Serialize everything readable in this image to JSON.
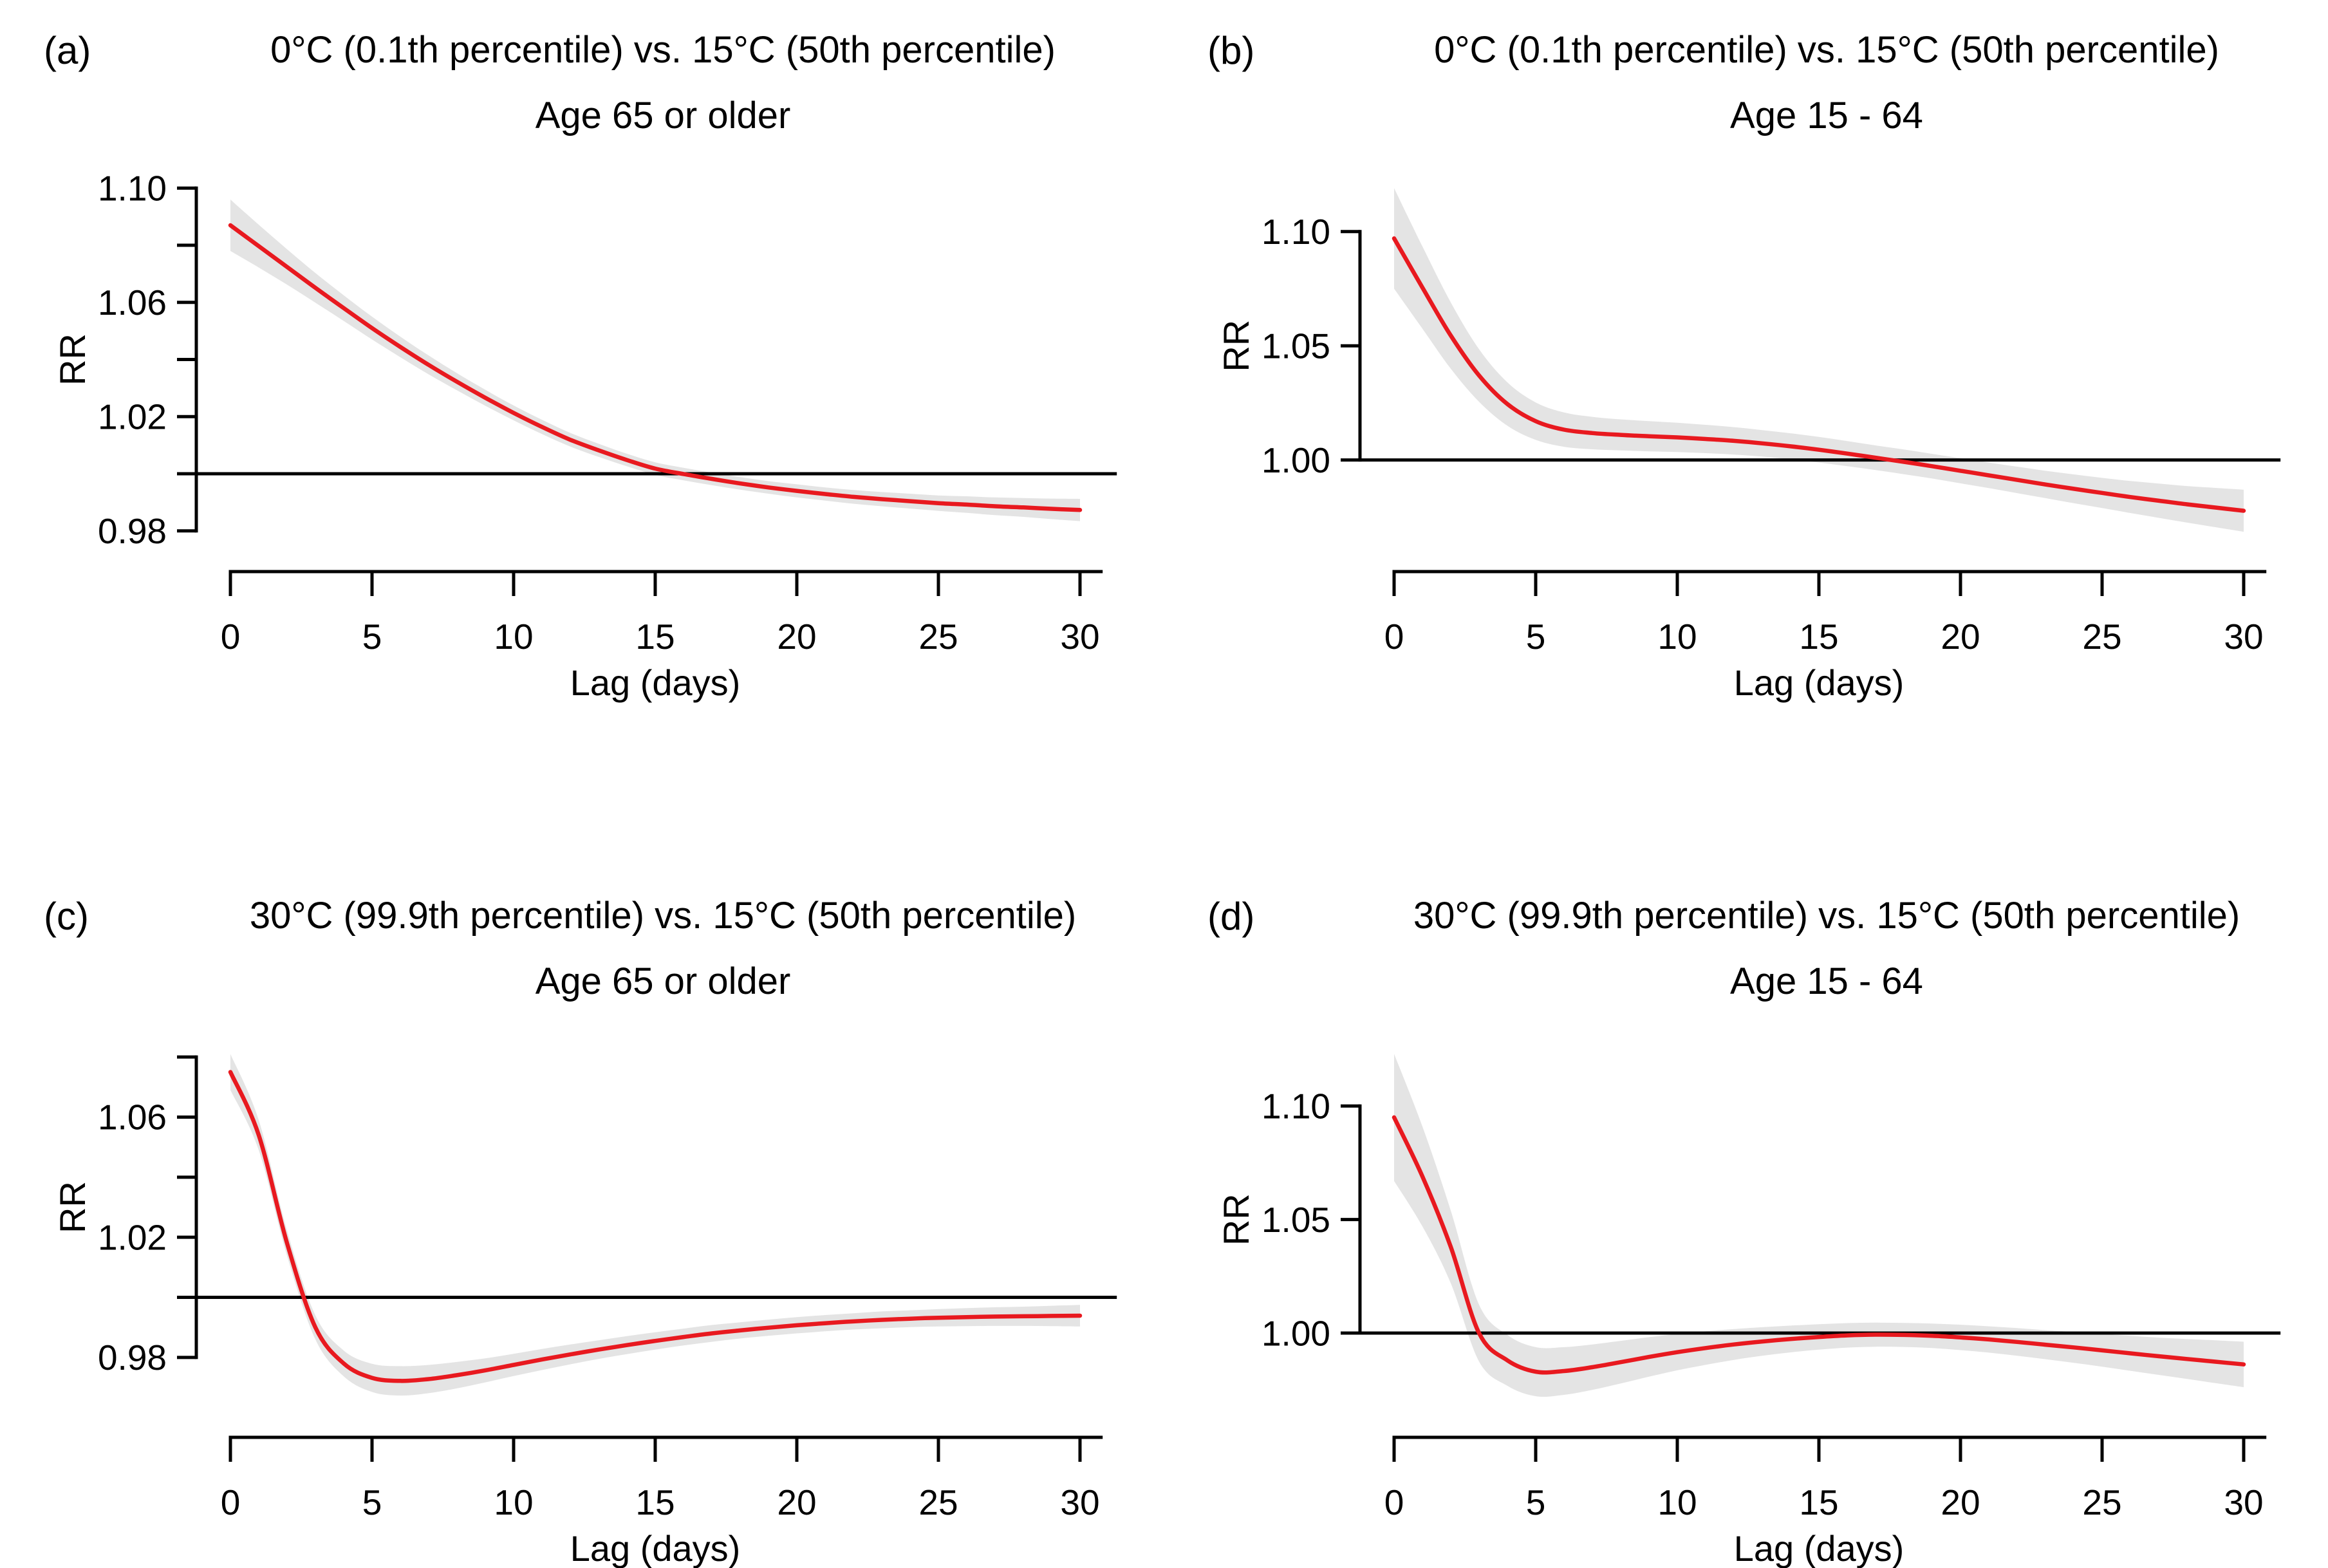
{
  "figure": {
    "background": "#ffffff",
    "colors": {
      "curve": "#e8191f",
      "band": "#e4e4e4",
      "axis": "#000000",
      "text": "#000000",
      "reference_line": "#000000"
    }
  },
  "chart_data": [
    {
      "panel_label": "(a)",
      "title": "0°C (0.1th percentile) vs. 15°C (50th percentile)",
      "subtitle": "Age 65 or older",
      "type": "line",
      "xlabel": "Lag (days)",
      "ylabel": "RR",
      "legend": "none",
      "grid": false,
      "ref_line": 1.0,
      "x_ticks": [
        0,
        5,
        10,
        15,
        20,
        25,
        30
      ],
      "y_ticks": [
        {
          "value": 0.98,
          "label": "0.98"
        },
        {
          "value": 1.02,
          "label": "1.02"
        },
        {
          "value": 1.06,
          "label": "1.06"
        },
        {
          "value": 1.1,
          "label": "1.10"
        }
      ],
      "y_minor": [
        1.0,
        1.04,
        1.08
      ],
      "y_axis_range": [
        0.98,
        1.1
      ],
      "ylim": [
        0.9752,
        1.1048
      ],
      "xlim": [
        -1.2,
        31.2
      ],
      "x": [
        0,
        1,
        2,
        3,
        4,
        5,
        6,
        7,
        8,
        9,
        10,
        11,
        12,
        13,
        14,
        15,
        16,
        17,
        18,
        19,
        20,
        21,
        22,
        23,
        24,
        25,
        26,
        27,
        28,
        29,
        30
      ],
      "y": [
        1.087,
        1.0797,
        1.0724,
        1.0651,
        1.058,
        1.051,
        1.0444,
        1.0381,
        1.0322,
        1.0266,
        1.0213,
        1.0164,
        1.0119,
        1.0082,
        1.0048,
        1.0018,
        0.9999,
        0.9982,
        0.9966,
        0.9952,
        0.994,
        0.9929,
        0.9919,
        0.9911,
        0.9904,
        0.9897,
        0.9892,
        0.9886,
        0.9882,
        0.9877,
        0.9873
      ],
      "ci_half": [
        0.009,
        0.0075,
        0.0062,
        0.0052,
        0.0045,
        0.004,
        0.0036,
        0.0033,
        0.003,
        0.0028,
        0.0026,
        0.0025,
        0.0024,
        0.0023,
        0.0022,
        0.0022,
        0.0022,
        0.0022,
        0.0022,
        0.0022,
        0.0023,
        0.0023,
        0.0024,
        0.0025,
        0.0026,
        0.0027,
        0.0029,
        0.0031,
        0.0033,
        0.0036,
        0.0039
      ]
    },
    {
      "panel_label": "(b)",
      "title": "0°C (0.1th percentile) vs. 15°C (50th percentile)",
      "subtitle": "Age 15 - 64",
      "type": "line",
      "xlabel": "Lag (days)",
      "ylabel": "RR",
      "legend": "none",
      "grid": false,
      "ref_line": 1.0,
      "x_ticks": [
        0,
        5,
        10,
        15,
        20,
        25,
        30
      ],
      "y_ticks": [
        {
          "value": 1.0,
          "label": "1.00"
        },
        {
          "value": 1.05,
          "label": "1.05"
        },
        {
          "value": 1.1,
          "label": "1.10"
        }
      ],
      "y_minor": [],
      "y_axis_range": [
        1.0,
        1.1
      ],
      "ylim": [
        0.963,
        1.125
      ],
      "xlim": [
        -1.2,
        31.2
      ],
      "x": [
        0,
        1,
        2,
        3,
        4,
        5,
        6,
        7,
        8,
        9,
        10,
        11,
        12,
        13,
        14,
        15,
        16,
        17,
        18,
        19,
        20,
        21,
        22,
        23,
        24,
        25,
        26,
        27,
        28,
        29,
        30
      ],
      "y": [
        1.097,
        1.0755,
        1.0545,
        1.037,
        1.0245,
        1.017,
        1.0133,
        1.0118,
        1.011,
        1.0104,
        1.0099,
        1.0092,
        1.0084,
        1.0073,
        1.006,
        1.0045,
        1.0028,
        1.001,
        0.9992,
        0.9973,
        0.9953,
        0.9933,
        0.9913,
        0.9893,
        0.9874,
        0.9856,
        0.9838,
        0.9822,
        0.9806,
        0.9792,
        0.9778
      ],
      "ci_half": [
        0.022,
        0.018,
        0.0145,
        0.0115,
        0.0095,
        0.0082,
        0.0075,
        0.0071,
        0.0068,
        0.0066,
        0.0064,
        0.0062,
        0.006,
        0.0058,
        0.0057,
        0.0056,
        0.0055,
        0.0054,
        0.0054,
        0.0054,
        0.0055,
        0.0056,
        0.0058,
        0.006,
        0.0063,
        0.0066,
        0.007,
        0.0075,
        0.008,
        0.0086,
        0.0092
      ]
    },
    {
      "panel_label": "(c)",
      "title": "30°C (99.9th percentile) vs. 15°C (50th percentile)",
      "subtitle": "Age 65 or older",
      "type": "line",
      "xlabel": "Lag (days)",
      "ylabel": "RR",
      "legend": "none",
      "grid": false,
      "ref_line": 1.0,
      "x_ticks": [
        0,
        5,
        10,
        15,
        20,
        25,
        30
      ],
      "y_ticks": [
        {
          "value": 0.98,
          "label": "0.98"
        },
        {
          "value": 1.02,
          "label": "1.02"
        },
        {
          "value": 1.06,
          "label": "1.06"
        }
      ],
      "y_minor": [
        1.0,
        1.04,
        1.08
      ],
      "y_axis_range": [
        0.98,
        1.08
      ],
      "ylim": [
        0.9624,
        1.0856
      ],
      "xlim": [
        -1.2,
        31.2
      ],
      "x": [
        0,
        1,
        2,
        3,
        4,
        5,
        6,
        7,
        8,
        9,
        10,
        11,
        12,
        13,
        14,
        15,
        16,
        17,
        18,
        19,
        20,
        21,
        22,
        23,
        24,
        25,
        26,
        27,
        28,
        29,
        30
      ],
      "y": [
        1.075,
        1.054,
        1.018,
        0.99,
        0.978,
        0.9732,
        0.9722,
        0.9728,
        0.9741,
        0.9757,
        0.9775,
        0.9793,
        0.981,
        0.9826,
        0.9841,
        0.9855,
        0.9868,
        0.988,
        0.989,
        0.9899,
        0.9907,
        0.9914,
        0.992,
        0.9925,
        0.9929,
        0.9932,
        0.9934,
        0.9936,
        0.9937,
        0.9938,
        0.9939
      ],
      "ci_half": [
        0.006,
        0.005,
        0.0042,
        0.004,
        0.0043,
        0.0047,
        0.0049,
        0.0047,
        0.0044,
        0.004,
        0.0037,
        0.0035,
        0.0033,
        0.0031,
        0.003,
        0.0029,
        0.0028,
        0.0028,
        0.0027,
        0.0027,
        0.0027,
        0.0027,
        0.0027,
        0.0028,
        0.0028,
        0.0029,
        0.003,
        0.0031,
        0.0032,
        0.0034,
        0.0036
      ]
    },
    {
      "panel_label": "(d)",
      "title": "30°C (99.9th percentile) vs. 15°C (50th percentile)",
      "subtitle": "Age 15 - 64",
      "type": "line",
      "xlabel": "Lag (days)",
      "ylabel": "RR",
      "legend": "none",
      "grid": false,
      "ref_line": 1.0,
      "x_ticks": [
        0,
        5,
        10,
        15,
        20,
        25,
        30
      ],
      "y_ticks": [
        {
          "value": 1.0,
          "label": "1.00"
        },
        {
          "value": 1.05,
          "label": "1.05"
        },
        {
          "value": 1.1,
          "label": "1.10"
        }
      ],
      "y_minor": [],
      "y_axis_range": [
        1.0,
        1.1
      ],
      "ylim": [
        0.966,
        1.129
      ],
      "xlim": [
        -1.2,
        31.2
      ],
      "x": [
        0,
        1,
        2,
        3,
        4,
        5,
        6,
        7,
        8,
        9,
        10,
        11,
        12,
        13,
        14,
        15,
        16,
        17,
        18,
        19,
        20,
        21,
        22,
        23,
        24,
        25,
        26,
        27,
        28,
        29,
        30
      ],
      "y": [
        1.095,
        1.069,
        1.038,
        1.0,
        0.988,
        0.983,
        0.9833,
        0.985,
        0.9872,
        0.9895,
        0.9916,
        0.9934,
        0.995,
        0.9963,
        0.9974,
        0.9983,
        0.999,
        0.9993,
        0.9992,
        0.9988,
        0.9981,
        0.9972,
        0.9961,
        0.9949,
        0.9937,
        0.9924,
        0.9911,
        0.9898,
        0.9886,
        0.9874,
        0.9862
      ],
      "ci_half": [
        0.028,
        0.022,
        0.016,
        0.0125,
        0.0112,
        0.0108,
        0.0105,
        0.01,
        0.0094,
        0.0087,
        0.008,
        0.0074,
        0.0068,
        0.0063,
        0.0059,
        0.0056,
        0.0054,
        0.0053,
        0.0053,
        0.0054,
        0.0056,
        0.0058,
        0.0061,
        0.0064,
        0.0068,
        0.0072,
        0.0077,
        0.0082,
        0.0088,
        0.0094,
        0.01
      ]
    }
  ]
}
